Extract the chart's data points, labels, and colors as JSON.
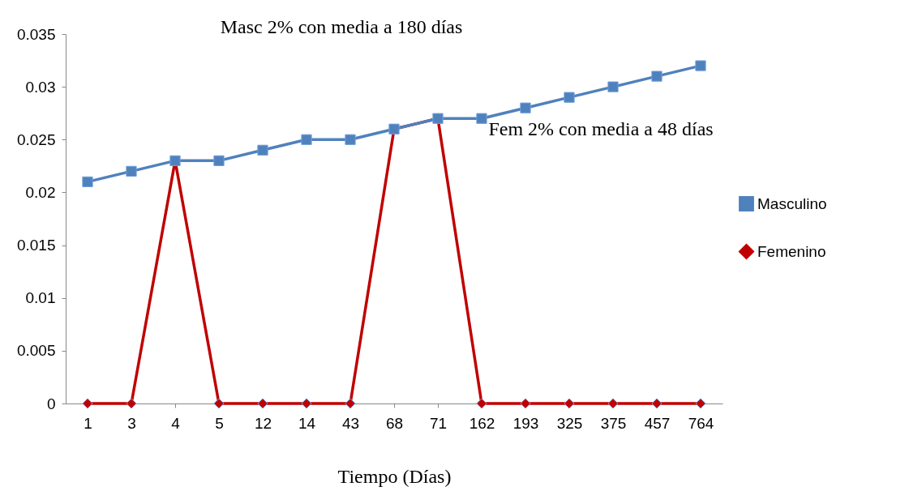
{
  "chart_data": {
    "type": "line",
    "xlabel": "Tiempo (Días)",
    "categories": [
      "1",
      "3",
      "4",
      "5",
      "12",
      "14",
      "43",
      "68",
      "71",
      "162",
      "193",
      "325",
      "375",
      "457",
      "764"
    ],
    "series": [
      {
        "name": "Masculino",
        "color": "#4f81bd",
        "marker": "square",
        "values": [
          0.021,
          0.022,
          0.023,
          0.023,
          0.024,
          0.025,
          0.025,
          0.026,
          0.027,
          0.027,
          0.028,
          0.029,
          0.03,
          0.031,
          0.032
        ]
      },
      {
        "name": "Femenino",
        "color": "#c00000",
        "marker": "diamond",
        "values": [
          0,
          0,
          0.023,
          0,
          0,
          0,
          0,
          0.026,
          0.027,
          0,
          0,
          0,
          0,
          0,
          0
        ]
      }
    ],
    "ylim": [
      0,
      0.035
    ],
    "yticks": [
      0,
      0.005,
      0.01,
      0.015,
      0.02,
      0.025,
      0.03,
      0.035
    ],
    "grid": false,
    "legend": "right",
    "annotations": [
      "Masc 2% con media a 180 días",
      "Fem 2% con media a 48 días"
    ]
  }
}
